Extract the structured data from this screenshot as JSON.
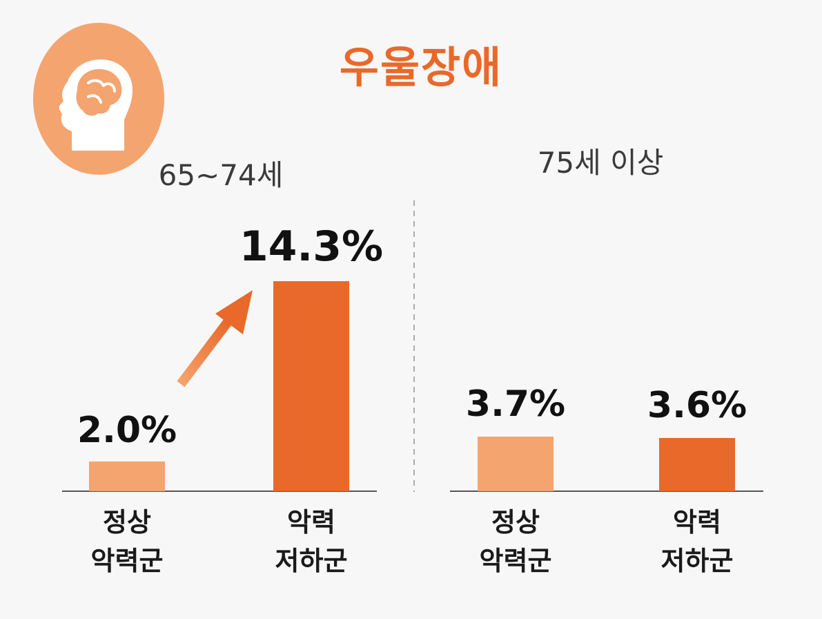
{
  "title": "우울장애",
  "colors": {
    "accent": "#e8692a",
    "light_bar": "#f4a46f",
    "dark_bar": "#e8692a",
    "icon_circle": "#f4a46f",
    "baseline": "#555555",
    "divider": "#aaaaaa"
  },
  "icon": {
    "name": "head-brain-icon"
  },
  "chart_data": [
    {
      "type": "bar",
      "title": "65~74세",
      "categories": [
        [
          "정상",
          "악력군"
        ],
        [
          "악력",
          "저하군"
        ]
      ],
      "values": [
        2.0,
        14.3
      ],
      "value_labels": [
        "2.0%",
        "14.3%"
      ],
      "unit": "%",
      "ylim": [
        0,
        14.3
      ],
      "annotation": "arrow-up-trend"
    },
    {
      "type": "bar",
      "title": "75세 이상",
      "categories": [
        [
          "정상",
          "악력군"
        ],
        [
          "악력",
          "저하군"
        ]
      ],
      "values": [
        3.7,
        3.6
      ],
      "value_labels": [
        "3.7%",
        "3.6%"
      ],
      "unit": "%",
      "ylim": [
        0,
        14.3
      ]
    }
  ]
}
